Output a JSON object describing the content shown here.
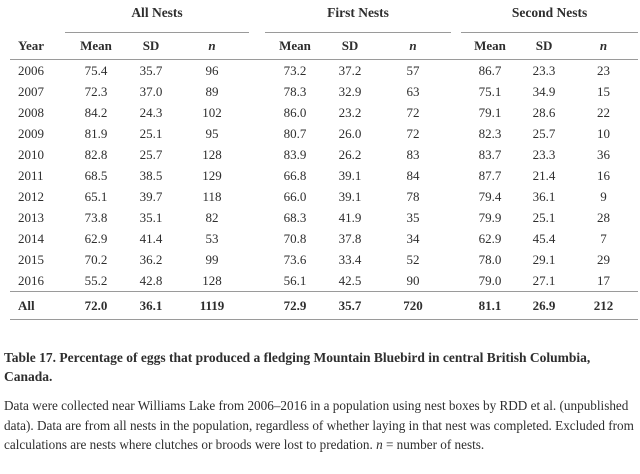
{
  "table": {
    "groups": [
      {
        "label": "All Nests"
      },
      {
        "label": "First Nests"
      },
      {
        "label": "Second Nests"
      }
    ],
    "year_header": "Year",
    "sub_headers": [
      "Mean",
      "SD",
      "n"
    ],
    "rows": [
      {
        "year": "2006",
        "all": [
          "75.4",
          "35.7",
          "96"
        ],
        "first": [
          "73.2",
          "37.2",
          "57"
        ],
        "second": [
          "86.7",
          "23.3",
          "23"
        ]
      },
      {
        "year": "2007",
        "all": [
          "72.3",
          "37.0",
          "89"
        ],
        "first": [
          "78.3",
          "32.9",
          "63"
        ],
        "second": [
          "75.1",
          "34.9",
          "15"
        ]
      },
      {
        "year": "2008",
        "all": [
          "84.2",
          "24.3",
          "102"
        ],
        "first": [
          "86.0",
          "23.2",
          "72"
        ],
        "second": [
          "79.1",
          "28.6",
          "22"
        ]
      },
      {
        "year": "2009",
        "all": [
          "81.9",
          "25.1",
          "95"
        ],
        "first": [
          "80.7",
          "26.0",
          "72"
        ],
        "second": [
          "82.3",
          "25.7",
          "10"
        ]
      },
      {
        "year": "2010",
        "all": [
          "82.8",
          "25.7",
          "128"
        ],
        "first": [
          "83.9",
          "26.2",
          "83"
        ],
        "second": [
          "83.7",
          "23.3",
          "36"
        ]
      },
      {
        "year": "2011",
        "all": [
          "68.5",
          "38.5",
          "129"
        ],
        "first": [
          "66.8",
          "39.1",
          "84"
        ],
        "second": [
          "87.7",
          "21.4",
          "16"
        ]
      },
      {
        "year": "2012",
        "all": [
          "65.1",
          "39.7",
          "118"
        ],
        "first": [
          "66.0",
          "39.1",
          "78"
        ],
        "second": [
          "79.4",
          "36.1",
          "9"
        ]
      },
      {
        "year": "2013",
        "all": [
          "73.8",
          "35.1",
          "82"
        ],
        "first": [
          "68.3",
          "41.9",
          "35"
        ],
        "second": [
          "79.9",
          "25.1",
          "28"
        ]
      },
      {
        "year": "2014",
        "all": [
          "62.9",
          "41.4",
          "53"
        ],
        "first": [
          "70.8",
          "37.8",
          "34"
        ],
        "second": [
          "62.9",
          "45.4",
          "7"
        ]
      },
      {
        "year": "2015",
        "all": [
          "70.2",
          "36.2",
          "99"
        ],
        "first": [
          "73.6",
          "33.4",
          "52"
        ],
        "second": [
          "78.0",
          "29.1",
          "29"
        ]
      },
      {
        "year": "2016",
        "all": [
          "55.2",
          "42.8",
          "128"
        ],
        "first": [
          "56.1",
          "42.5",
          "90"
        ],
        "second": [
          "79.0",
          "27.1",
          "17"
        ]
      }
    ],
    "total_row": {
      "year": "All",
      "all": [
        "72.0",
        "36.1",
        "1119"
      ],
      "first": [
        "72.9",
        "35.7",
        "720"
      ],
      "second": [
        "81.1",
        "26.9",
        "212"
      ]
    }
  },
  "caption": {
    "title": "Table 17. Percentage of eggs that produced a fledging Mountain Bluebird in central British Columbia, Canada.",
    "body_before_n": "Data were collected near Williams Lake from 2006–2016 in a population using nest boxes by RDD et al. (unpublished data). Data are from all nests in the population, regardless of whether laying in that nest was completed. Excluded from calculations are nests where clutches or broods were lost to predation. ",
    "n_symbol": "n",
    "body_after_n": " = number of nests."
  }
}
